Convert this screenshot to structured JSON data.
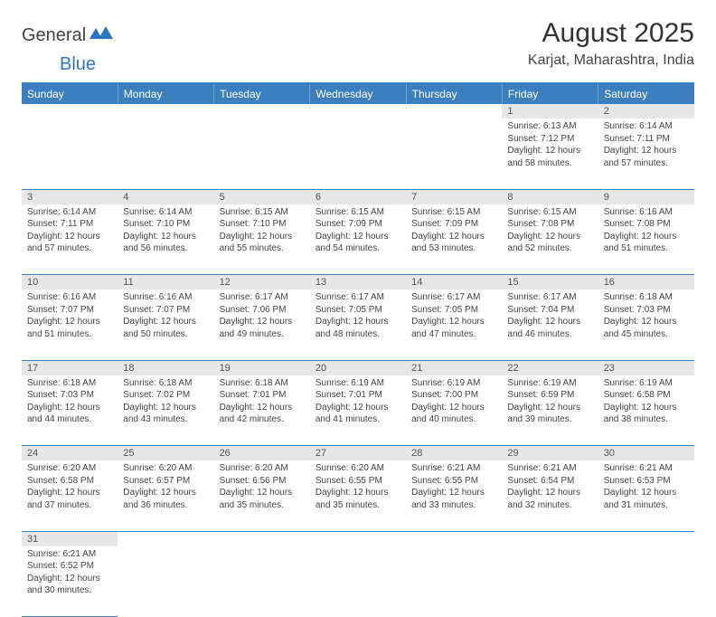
{
  "logo": {
    "word1": "General",
    "word2": "Blue",
    "shape_color": "#2b78c2"
  },
  "title": "August 2025",
  "location": "Karjat, Maharashtra, India",
  "colors": {
    "header_bg": "#3b7fbf",
    "header_fg": "#ffffff",
    "grid_line": "#3b7fbf",
    "daynum_bg": "#e7e7e7",
    "text": "#444444"
  },
  "weekdays": [
    "Sunday",
    "Monday",
    "Tuesday",
    "Wednesday",
    "Thursday",
    "Friday",
    "Saturday"
  ],
  "weeks": [
    [
      null,
      null,
      null,
      null,
      null,
      {
        "d": "1",
        "sr": "Sunrise: 6:13 AM",
        "ss": "Sunset: 7:12 PM",
        "dl1": "Daylight: 12 hours",
        "dl2": "and 58 minutes."
      },
      {
        "d": "2",
        "sr": "Sunrise: 6:14 AM",
        "ss": "Sunset: 7:11 PM",
        "dl1": "Daylight: 12 hours",
        "dl2": "and 57 minutes."
      }
    ],
    [
      {
        "d": "3",
        "sr": "Sunrise: 6:14 AM",
        "ss": "Sunset: 7:11 PM",
        "dl1": "Daylight: 12 hours",
        "dl2": "and 57 minutes."
      },
      {
        "d": "4",
        "sr": "Sunrise: 6:14 AM",
        "ss": "Sunset: 7:10 PM",
        "dl1": "Daylight: 12 hours",
        "dl2": "and 56 minutes."
      },
      {
        "d": "5",
        "sr": "Sunrise: 6:15 AM",
        "ss": "Sunset: 7:10 PM",
        "dl1": "Daylight: 12 hours",
        "dl2": "and 55 minutes."
      },
      {
        "d": "6",
        "sr": "Sunrise: 6:15 AM",
        "ss": "Sunset: 7:09 PM",
        "dl1": "Daylight: 12 hours",
        "dl2": "and 54 minutes."
      },
      {
        "d": "7",
        "sr": "Sunrise: 6:15 AM",
        "ss": "Sunset: 7:09 PM",
        "dl1": "Daylight: 12 hours",
        "dl2": "and 53 minutes."
      },
      {
        "d": "8",
        "sr": "Sunrise: 6:15 AM",
        "ss": "Sunset: 7:08 PM",
        "dl1": "Daylight: 12 hours",
        "dl2": "and 52 minutes."
      },
      {
        "d": "9",
        "sr": "Sunrise: 6:16 AM",
        "ss": "Sunset: 7:08 PM",
        "dl1": "Daylight: 12 hours",
        "dl2": "and 51 minutes."
      }
    ],
    [
      {
        "d": "10",
        "sr": "Sunrise: 6:16 AM",
        "ss": "Sunset: 7:07 PM",
        "dl1": "Daylight: 12 hours",
        "dl2": "and 51 minutes."
      },
      {
        "d": "11",
        "sr": "Sunrise: 6:16 AM",
        "ss": "Sunset: 7:07 PM",
        "dl1": "Daylight: 12 hours",
        "dl2": "and 50 minutes."
      },
      {
        "d": "12",
        "sr": "Sunrise: 6:17 AM",
        "ss": "Sunset: 7:06 PM",
        "dl1": "Daylight: 12 hours",
        "dl2": "and 49 minutes."
      },
      {
        "d": "13",
        "sr": "Sunrise: 6:17 AM",
        "ss": "Sunset: 7:05 PM",
        "dl1": "Daylight: 12 hours",
        "dl2": "and 48 minutes."
      },
      {
        "d": "14",
        "sr": "Sunrise: 6:17 AM",
        "ss": "Sunset: 7:05 PM",
        "dl1": "Daylight: 12 hours",
        "dl2": "and 47 minutes."
      },
      {
        "d": "15",
        "sr": "Sunrise: 6:17 AM",
        "ss": "Sunset: 7:04 PM",
        "dl1": "Daylight: 12 hours",
        "dl2": "and 46 minutes."
      },
      {
        "d": "16",
        "sr": "Sunrise: 6:18 AM",
        "ss": "Sunset: 7:03 PM",
        "dl1": "Daylight: 12 hours",
        "dl2": "and 45 minutes."
      }
    ],
    [
      {
        "d": "17",
        "sr": "Sunrise: 6:18 AM",
        "ss": "Sunset: 7:03 PM",
        "dl1": "Daylight: 12 hours",
        "dl2": "and 44 minutes."
      },
      {
        "d": "18",
        "sr": "Sunrise: 6:18 AM",
        "ss": "Sunset: 7:02 PM",
        "dl1": "Daylight: 12 hours",
        "dl2": "and 43 minutes."
      },
      {
        "d": "19",
        "sr": "Sunrise: 6:18 AM",
        "ss": "Sunset: 7:01 PM",
        "dl1": "Daylight: 12 hours",
        "dl2": "and 42 minutes."
      },
      {
        "d": "20",
        "sr": "Sunrise: 6:19 AM",
        "ss": "Sunset: 7:01 PM",
        "dl1": "Daylight: 12 hours",
        "dl2": "and 41 minutes."
      },
      {
        "d": "21",
        "sr": "Sunrise: 6:19 AM",
        "ss": "Sunset: 7:00 PM",
        "dl1": "Daylight: 12 hours",
        "dl2": "and 40 minutes."
      },
      {
        "d": "22",
        "sr": "Sunrise: 6:19 AM",
        "ss": "Sunset: 6:59 PM",
        "dl1": "Daylight: 12 hours",
        "dl2": "and 39 minutes."
      },
      {
        "d": "23",
        "sr": "Sunrise: 6:19 AM",
        "ss": "Sunset: 6:58 PM",
        "dl1": "Daylight: 12 hours",
        "dl2": "and 38 minutes."
      }
    ],
    [
      {
        "d": "24",
        "sr": "Sunrise: 6:20 AM",
        "ss": "Sunset: 6:58 PM",
        "dl1": "Daylight: 12 hours",
        "dl2": "and 37 minutes."
      },
      {
        "d": "25",
        "sr": "Sunrise: 6:20 AM",
        "ss": "Sunset: 6:57 PM",
        "dl1": "Daylight: 12 hours",
        "dl2": "and 36 minutes."
      },
      {
        "d": "26",
        "sr": "Sunrise: 6:20 AM",
        "ss": "Sunset: 6:56 PM",
        "dl1": "Daylight: 12 hours",
        "dl2": "and 35 minutes."
      },
      {
        "d": "27",
        "sr": "Sunrise: 6:20 AM",
        "ss": "Sunset: 6:55 PM",
        "dl1": "Daylight: 12 hours",
        "dl2": "and 35 minutes."
      },
      {
        "d": "28",
        "sr": "Sunrise: 6:21 AM",
        "ss": "Sunset: 6:55 PM",
        "dl1": "Daylight: 12 hours",
        "dl2": "and 33 minutes."
      },
      {
        "d": "29",
        "sr": "Sunrise: 6:21 AM",
        "ss": "Sunset: 6:54 PM",
        "dl1": "Daylight: 12 hours",
        "dl2": "and 32 minutes."
      },
      {
        "d": "30",
        "sr": "Sunrise: 6:21 AM",
        "ss": "Sunset: 6:53 PM",
        "dl1": "Daylight: 12 hours",
        "dl2": "and 31 minutes."
      }
    ],
    [
      {
        "d": "31",
        "sr": "Sunrise: 6:21 AM",
        "ss": "Sunset: 6:52 PM",
        "dl1": "Daylight: 12 hours",
        "dl2": "and 30 minutes."
      },
      null,
      null,
      null,
      null,
      null,
      null
    ]
  ]
}
